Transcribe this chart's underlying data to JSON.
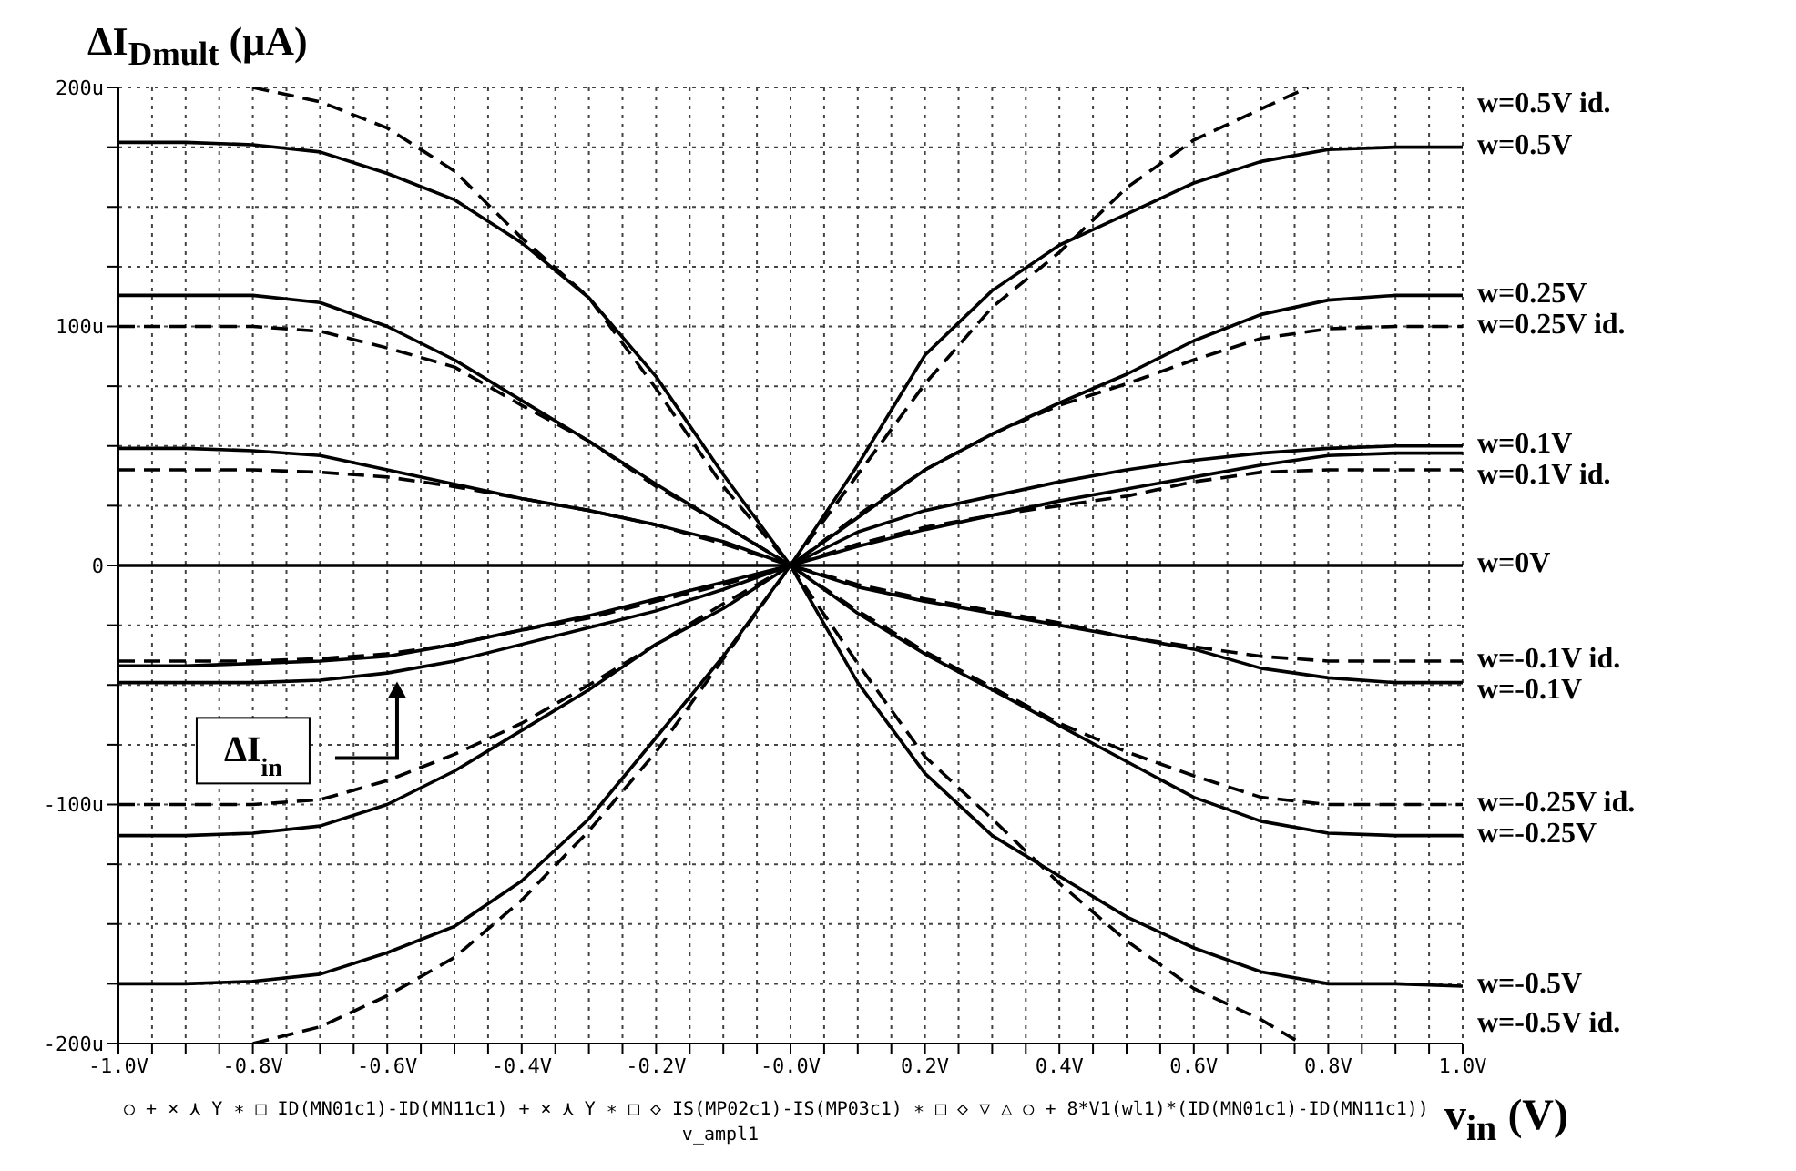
{
  "chart_data": {
    "type": "line",
    "title": "ΔI$_{Dmult}$ (μA)",
    "xlabel": "v$_{in}$ (V)",
    "x": [
      -1,
      -0.9,
      -0.8,
      -0.7,
      -0.6,
      -0.5,
      -0.4,
      -0.3,
      -0.2,
      -0.1,
      0,
      0.1,
      0.2,
      0.3,
      0.4,
      0.5,
      0.6,
      0.7,
      0.8,
      0.9,
      1
    ],
    "series": [
      {
        "name": "w=0.5V id.",
        "color": "#000000",
        "line_style": "dashed",
        "x": [
          -0.8,
          -0.7,
          -0.6,
          -0.5,
          -0.4,
          -0.3,
          -0.2,
          -0.1,
          0,
          0.1,
          0.2,
          0.3,
          0.4,
          0.5,
          0.6,
          0.7,
          0.77
        ],
        "values": [
          -200,
          -193,
          -180,
          -164,
          -140,
          -111,
          -78,
          -39,
          0,
          38,
          76,
          108,
          131,
          158,
          178,
          191,
          200
        ]
      },
      {
        "name": "w=0.5V",
        "color": "#000000",
        "line_style": "solid",
        "values": [
          -175,
          -175,
          -174,
          -171,
          -162,
          -151,
          -132,
          -106,
          -72,
          -38,
          0,
          42,
          88,
          115,
          134,
          147,
          160,
          169,
          174,
          175,
          175
        ]
      },
      {
        "name": "w=0.25V",
        "color": "#000000",
        "line_style": "solid",
        "values": [
          -113,
          -113,
          -112,
          -109,
          -100,
          -86,
          -69,
          -52,
          -33,
          -18,
          0,
          20,
          40,
          55,
          68,
          80,
          94,
          105,
          111,
          113,
          113
        ]
      },
      {
        "name": "w=0.25V id.",
        "color": "#000000",
        "line_style": "dashed",
        "values": [
          -100,
          -100,
          -100,
          -98,
          -90,
          -79,
          -66,
          -50,
          -33,
          -16,
          0,
          21,
          40,
          55,
          67,
          76,
          86,
          95,
          99,
          100,
          100
        ]
      },
      {
        "name": "w=0.1V",
        "color": "#000000",
        "line_style": "solid",
        "values": [
          -49,
          -49,
          -49,
          -48,
          -45,
          -40,
          -33,
          -26,
          -19,
          -10,
          0,
          14,
          23,
          29,
          35,
          40,
          44,
          47,
          49,
          50,
          50
        ]
      },
      {
        "color": "#000000",
        "line_style": "solid",
        "values": [
          -42,
          -42,
          -41,
          -40,
          -38,
          -33,
          -27,
          -21,
          -14,
          -7,
          0,
          8,
          15,
          21,
          27,
          32,
          37,
          42,
          46,
          47,
          47
        ]
      },
      {
        "name": "w=0.1V id.",
        "color": "#000000",
        "line_style": "dashed",
        "values": [
          -40,
          -40,
          -40,
          -39,
          -37,
          -33,
          -27,
          -22,
          -15,
          -8,
          0,
          9,
          16,
          21,
          25,
          29,
          35,
          39,
          40,
          40,
          40
        ]
      },
      {
        "name": "w=0V",
        "color": "#000000",
        "line_style": "solid",
        "values": [
          0,
          0,
          0,
          0,
          0,
          0,
          0,
          0,
          0,
          0,
          0,
          0,
          0,
          0,
          0,
          0,
          0,
          0,
          0,
          0,
          0
        ]
      },
      {
        "name": "w=-0.1V id.",
        "color": "#000000",
        "line_style": "dashed",
        "values": [
          40,
          40,
          40,
          39,
          37,
          33,
          28,
          23,
          17,
          9,
          0,
          -8,
          -14,
          -19,
          -24,
          -30,
          -34,
          -38,
          -40,
          -40,
          -40
        ]
      },
      {
        "name": "w=-0.1V",
        "color": "#000000",
        "line_style": "solid",
        "values": [
          49,
          49,
          48,
          46,
          40,
          34,
          28,
          23,
          17,
          10,
          0,
          -9,
          -15,
          -20,
          -25,
          -30,
          -35,
          -43,
          -47,
          -49,
          -49
        ]
      },
      {
        "name": "w=-0.25V id.",
        "color": "#000000",
        "line_style": "dashed",
        "values": [
          100,
          100,
          100,
          98,
          91,
          83,
          67,
          52,
          33,
          17,
          0,
          -19,
          -36,
          -51,
          -66,
          -78,
          -88,
          -97,
          -100,
          -100,
          -100
        ]
      },
      {
        "name": "w=-0.25V",
        "color": "#000000",
        "line_style": "solid",
        "values": [
          113,
          113,
          113,
          110,
          100,
          86,
          69,
          52,
          34,
          17,
          0,
          -20,
          -37,
          -52,
          -67,
          -82,
          -97,
          -107,
          -112,
          -113,
          -113
        ]
      },
      {
        "name": "w=-0.5V",
        "color": "#000000",
        "line_style": "solid",
        "values": [
          177,
          177,
          176,
          173,
          164,
          153,
          135,
          112,
          79,
          38,
          0,
          -49,
          -87,
          -113,
          -130,
          -147,
          -160,
          -170,
          -175,
          -175,
          -176
        ]
      },
      {
        "name": "w=-0.5V id.",
        "color": "#000000",
        "line_style": "dashed",
        "x": [
          -0.8,
          -0.7,
          -0.6,
          -0.5,
          -0.4,
          -0.3,
          -0.2,
          -0.1,
          0,
          0.1,
          0.2,
          0.3,
          0.4,
          0.5,
          0.6,
          0.7,
          0.76
        ],
        "values": [
          200,
          194,
          183,
          165,
          137,
          112,
          74,
          33,
          0,
          -41,
          -80,
          -106,
          -133,
          -157,
          -177,
          -190,
          -200
        ]
      }
    ],
    "xlim": [
      -1,
      1
    ],
    "xticks": [
      {
        "value": -1,
        "label": "-1.0V"
      },
      {
        "value": -0.95,
        "label": null
      },
      {
        "value": -0.9,
        "label": null
      },
      {
        "value": -0.85,
        "label": null
      },
      {
        "value": -0.8,
        "label": "-0.8V"
      },
      {
        "value": -0.75,
        "label": null
      },
      {
        "value": -0.7,
        "label": null
      },
      {
        "value": -0.65,
        "label": null
      },
      {
        "value": -0.6,
        "label": "-0.6V"
      },
      {
        "value": -0.55,
        "label": null
      },
      {
        "value": -0.5,
        "label": null
      },
      {
        "value": -0.45,
        "label": null
      },
      {
        "value": -0.4,
        "label": "-0.4V"
      },
      {
        "value": -0.35,
        "label": null
      },
      {
        "value": -0.3,
        "label": null
      },
      {
        "value": -0.25,
        "label": null
      },
      {
        "value": -0.2,
        "label": "-0.2V"
      },
      {
        "value": -0.15,
        "label": null
      },
      {
        "value": -0.1,
        "label": null
      },
      {
        "value": -0.05,
        "label": null
      },
      {
        "value": 0,
        "label": "-0.0V"
      },
      {
        "value": 0.05,
        "label": null
      },
      {
        "value": 0.1,
        "label": null
      },
      {
        "value": 0.15,
        "label": null
      },
      {
        "value": 0.2,
        "label": "0.2V"
      },
      {
        "value": 0.25,
        "label": null
      },
      {
        "value": 0.3,
        "label": null
      },
      {
        "value": 0.35,
        "label": null
      },
      {
        "value": 0.4,
        "label": "0.4V"
      },
      {
        "value": 0.45,
        "label": null
      },
      {
        "value": 0.5,
        "label": null
      },
      {
        "value": 0.55,
        "label": null
      },
      {
        "value": 0.6,
        "label": "0.6V"
      },
      {
        "value": 0.65,
        "label": null
      },
      {
        "value": 0.7,
        "label": null
      },
      {
        "value": 0.75,
        "label": null
      },
      {
        "value": 0.8,
        "label": "0.8V"
      },
      {
        "value": 0.85,
        "label": null
      },
      {
        "value": 0.9,
        "label": null
      },
      {
        "value": 0.95,
        "label": null
      },
      {
        "value": 1,
        "label": "1.0V"
      }
    ],
    "ylim": [
      -200,
      200
    ],
    "yticks": [
      {
        "value": -200,
        "label": "-200u"
      },
      {
        "value": -175,
        "label": null
      },
      {
        "value": -150,
        "label": null
      },
      {
        "value": -125,
        "label": null
      },
      {
        "value": -100,
        "label": "-100u"
      },
      {
        "value": -75,
        "label": null
      },
      {
        "value": -50,
        "label": null
      },
      {
        "value": -25,
        "label": null
      },
      0,
      {
        "value": 25,
        "label": null
      },
      {
        "value": 50,
        "label": null
      },
      {
        "value": 75,
        "label": null
      },
      {
        "value": 100,
        "label": "100u"
      },
      {
        "value": 125,
        "label": null
      },
      {
        "value": 150,
        "label": null
      },
      {
        "value": 175,
        "label": null
      },
      {
        "value": 200,
        "label": "200u"
      }
    ],
    "grid": true,
    "annotations": [
      "ΔI$_{in}$",
      "○ + × ⋏ Y ∗ □ ID(MN01c1)-ID(MN11c1)  + × ⋏ Y ∗ □ ◇ IS(MP02c1)-IS(MP03c1)  ∗ □ ◇ ▽ △ ○ + 8*V1(wl1)*(ID(MN01c1)-ID(MN11c1))",
      "v_ampl1"
    ]
  }
}
